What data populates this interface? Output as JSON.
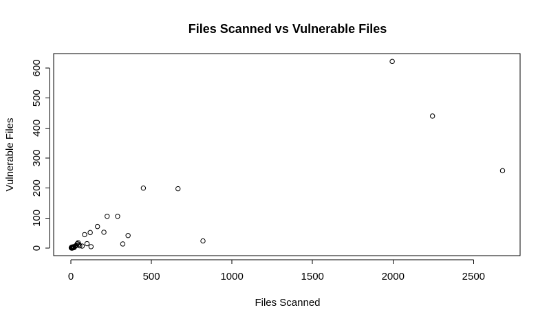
{
  "chart_data": {
    "type": "scatter",
    "title": "Files Scanned vs Vulnerable Files",
    "xlabel": "Files Scanned",
    "ylabel": "Vulnerable Files",
    "xlim": [
      -107,
      2789
    ],
    "ylim": [
      -25,
      648
    ],
    "x_ticks": [
      0,
      500,
      1000,
      1500,
      2000,
      2500
    ],
    "y_ticks": [
      0,
      100,
      200,
      300,
      400,
      500,
      600
    ],
    "grid": false,
    "legend": "none",
    "points": [
      {
        "x": 2,
        "y": 1
      },
      {
        "x": 4,
        "y": 3
      },
      {
        "x": 6,
        "y": 0
      },
      {
        "x": 8,
        "y": 2
      },
      {
        "x": 10,
        "y": 4
      },
      {
        "x": 12,
        "y": 1
      },
      {
        "x": 15,
        "y": 3
      },
      {
        "x": 18,
        "y": 5
      },
      {
        "x": 20,
        "y": 2
      },
      {
        "x": 25,
        "y": 6
      },
      {
        "x": 30,
        "y": 8
      },
      {
        "x": 35,
        "y": 10
      },
      {
        "x": 40,
        "y": 15
      },
      {
        "x": 45,
        "y": 18
      },
      {
        "x": 50,
        "y": 12
      },
      {
        "x": 55,
        "y": 8
      },
      {
        "x": 70,
        "y": 7
      },
      {
        "x": 85,
        "y": 45
      },
      {
        "x": 100,
        "y": 15
      },
      {
        "x": 120,
        "y": 52
      },
      {
        "x": 125,
        "y": 5
      },
      {
        "x": 165,
        "y": 72
      },
      {
        "x": 205,
        "y": 53
      },
      {
        "x": 225,
        "y": 106
      },
      {
        "x": 290,
        "y": 106
      },
      {
        "x": 322,
        "y": 14
      },
      {
        "x": 355,
        "y": 42
      },
      {
        "x": 450,
        "y": 200
      },
      {
        "x": 665,
        "y": 198
      },
      {
        "x": 820,
        "y": 24
      },
      {
        "x": 1995,
        "y": 622
      },
      {
        "x": 2245,
        "y": 440
      },
      {
        "x": 2680,
        "y": 258
      }
    ]
  }
}
